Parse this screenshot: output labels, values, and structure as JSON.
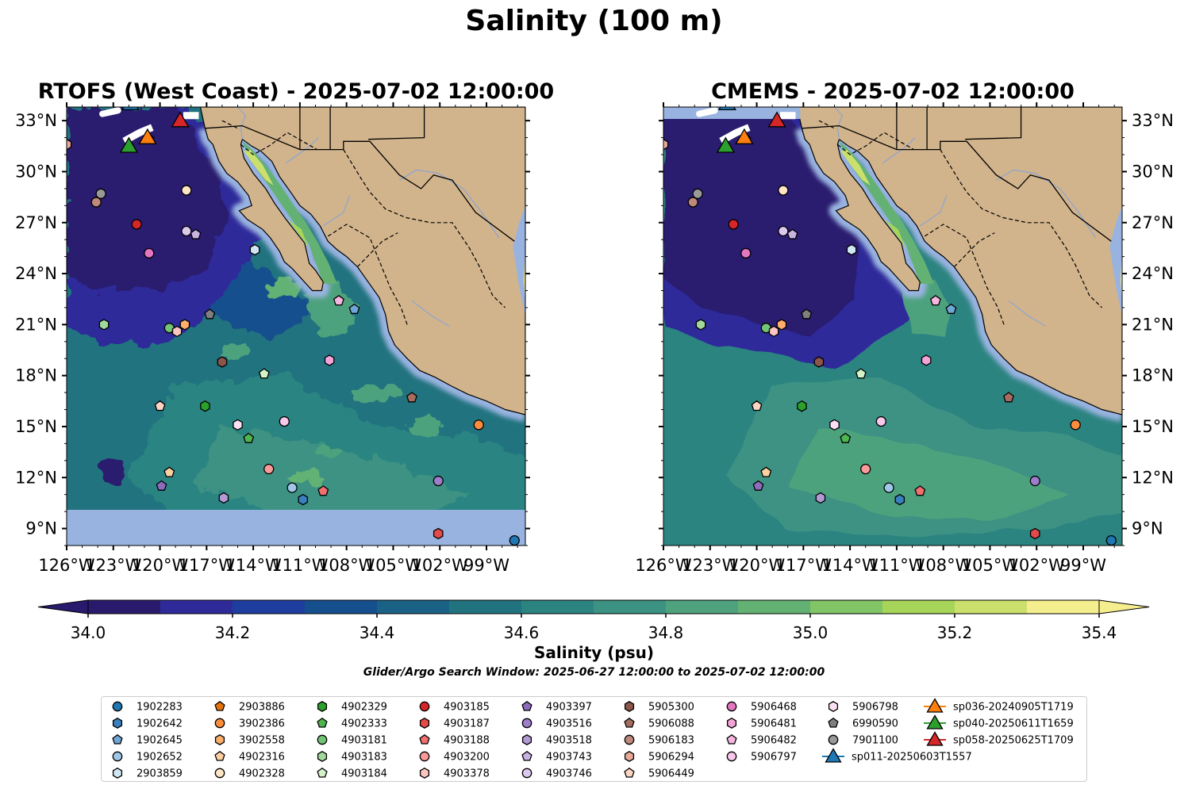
{
  "figure": {
    "title": "Salinity (100 m)",
    "colorbar_label": "Salinity (psu)",
    "search_window": "Glider/Argo Search Window: 2025-06-27 12:00:00 to 2025-07-02 12:00:00"
  },
  "colors": {
    "land": "#d2b48c",
    "ocean_nodata": "#99b3e0",
    "colormap": [
      "#2a1a6e",
      "#2e2a9a",
      "#1d3e9e",
      "#164f8e",
      "#1a6285",
      "#21737f",
      "#2c8481",
      "#3c9283",
      "#4ea27e",
      "#63b274",
      "#82c566",
      "#a7d55a",
      "#cbe06c",
      "#f5ee8e"
    ]
  },
  "chart_data": [
    {
      "type": "heatmap",
      "title": "RTOFS (West Coast) - 2025-07-02 12:00:00",
      "variable": "Salinity at 100 m",
      "units": "psu",
      "xlim": [
        -126,
        -96.5
      ],
      "ylim": [
        8,
        33.8
      ],
      "xticks": [
        "126°W",
        "123°W",
        "120°W",
        "117°W",
        "114°W",
        "111°W",
        "108°W",
        "105°W",
        "102°W",
        "99°W"
      ],
      "yticks": [
        "9°N",
        "12°N",
        "15°N",
        "18°N",
        "21°N",
        "24°N",
        "27°N",
        "30°N",
        "33°N"
      ],
      "ytick_side": "left",
      "nodata_band_below_lat": 10.1,
      "field_description": "Low salinity (~34.0) offshore north of 20°N; 34.4–34.8 across south; >35 in Gulf of California"
    },
    {
      "type": "heatmap",
      "title": "CMEMS - 2025-07-02 12:00:00",
      "variable": "Salinity at 100 m",
      "units": "psu",
      "xlim": [
        -126,
        -96.5
      ],
      "ylim": [
        8,
        33.8
      ],
      "xticks": [
        "126°W",
        "123°W",
        "120°W",
        "117°W",
        "114°W",
        "111°W",
        "108°W",
        "105°W",
        "102°W",
        "99°W"
      ],
      "yticks": [
        "9°N",
        "12°N",
        "15°N",
        "18°N",
        "21°N",
        "24°N",
        "27°N",
        "30°N",
        "33°N"
      ],
      "ytick_side": "right",
      "field_description": "Low salinity (~34.0) core offshore north of 19°N; 34.6–34.9 in south; >35 in Gulf of California"
    }
  ],
  "colorbar": {
    "min": 34.0,
    "max": 35.4,
    "step": 0.1,
    "ticks": [
      "34.0",
      "34.2",
      "34.4",
      "34.6",
      "34.8",
      "35.0",
      "35.2",
      "35.4"
    ],
    "extend": "both"
  },
  "platforms": [
    {
      "id": "1902283",
      "marker": "circle",
      "color": "#1f77b4",
      "lon": -97.2,
      "lat": 8.3
    },
    {
      "id": "1902642",
      "marker": "hexagon",
      "color": "#3a7fbf",
      "lon": -110.8,
      "lat": 10.7
    },
    {
      "id": "1902645",
      "marker": "pentagon",
      "color": "#6fa6d6",
      "lon": -107.5,
      "lat": 21.9
    },
    {
      "id": "1902652",
      "marker": "circle",
      "color": "#9ec7e8",
      "lon": -111.5,
      "lat": 11.4
    },
    {
      "id": "2903859",
      "marker": "hexagon",
      "color": "#cfe7f5",
      "lon": -113.9,
      "lat": 25.4
    },
    {
      "id": "2903886",
      "marker": "pentagon",
      "color": "#e6740e",
      "lon": -120.7,
      "lat": 31.9
    },
    {
      "id": "3902386",
      "marker": "circle",
      "color": "#fd8d3c",
      "lon": -99.5,
      "lat": 15.1
    },
    {
      "id": "3902558",
      "marker": "hexagon",
      "color": "#fdae6b",
      "lon": -118.4,
      "lat": 21.0
    },
    {
      "id": "4902316",
      "marker": "pentagon",
      "color": "#fdd0a2",
      "lon": -119.4,
      "lat": 12.3
    },
    {
      "id": "4902328",
      "marker": "circle",
      "color": "#fde5c6",
      "lon": -118.3,
      "lat": 28.9
    },
    {
      "id": "4902329",
      "marker": "hexagon",
      "color": "#2ca02c",
      "lon": -117.1,
      "lat": 16.2
    },
    {
      "id": "4902333",
      "marker": "pentagon",
      "color": "#4fb54f",
      "lon": -114.3,
      "lat": 14.3
    },
    {
      "id": "4903181",
      "marker": "circle",
      "color": "#74c476",
      "lon": -119.4,
      "lat": 20.8
    },
    {
      "id": "4903183",
      "marker": "hexagon",
      "color": "#a1d99b",
      "lon": -123.6,
      "lat": 21.0
    },
    {
      "id": "4903184",
      "marker": "pentagon",
      "color": "#d3f2c8",
      "lon": -113.3,
      "lat": 18.1
    },
    {
      "id": "4903185",
      "marker": "circle",
      "color": "#d62728",
      "lon": -121.5,
      "lat": 26.9
    },
    {
      "id": "4903187",
      "marker": "hexagon",
      "color": "#e34a4a",
      "lon": -102.1,
      "lat": 8.7
    },
    {
      "id": "4903188",
      "marker": "pentagon",
      "color": "#f27070",
      "lon": -109.5,
      "lat": 11.2
    },
    {
      "id": "4903200",
      "marker": "circle",
      "color": "#fc9a9a",
      "lon": -113.0,
      "lat": 12.5
    },
    {
      "id": "4903378",
      "marker": "hexagon",
      "color": "#fcc5c0",
      "lon": -118.9,
      "lat": 20.6
    },
    {
      "id": "4903397",
      "marker": "pentagon",
      "color": "#8e6bbd",
      "lon": -119.9,
      "lat": 11.5
    },
    {
      "id": "4903516",
      "marker": "circle",
      "color": "#9e7dc9",
      "lon": -102.1,
      "lat": 11.8
    },
    {
      "id": "4903518",
      "marker": "hexagon",
      "color": "#b399d6",
      "lon": -115.9,
      "lat": 10.8
    },
    {
      "id": "4903743",
      "marker": "pentagon",
      "color": "#c9b3e3",
      "lon": -117.7,
      "lat": 26.3
    },
    {
      "id": "4903746",
      "marker": "circle",
      "color": "#ddc9f0",
      "lon": -118.3,
      "lat": 26.5
    },
    {
      "id": "5905300",
      "marker": "hexagon",
      "color": "#8c564b",
      "lon": -116.0,
      "lat": 18.8
    },
    {
      "id": "5906088",
      "marker": "pentagon",
      "color": "#a66c5e",
      "lon": -103.8,
      "lat": 16.7
    },
    {
      "id": "5906183",
      "marker": "circle",
      "color": "#bf8a7c",
      "lon": -124.1,
      "lat": 28.2
    },
    {
      "id": "5906294",
      "marker": "hexagon",
      "color": "#e8a89a",
      "lon": -126.0,
      "lat": 31.6
    },
    {
      "id": "5906449",
      "marker": "pentagon",
      "color": "#fcd5c4",
      "lon": -120.0,
      "lat": 16.2
    },
    {
      "id": "5906468",
      "marker": "circle",
      "color": "#e377c2",
      "lon": -120.7,
      "lat": 25.2
    },
    {
      "id": "5906481",
      "marker": "hexagon",
      "color": "#f4a3d8",
      "lon": -109.1,
      "lat": 18.9
    },
    {
      "id": "5906482",
      "marker": "pentagon",
      "color": "#f7b6e0",
      "lon": -108.5,
      "lat": 22.4
    },
    {
      "id": "5906797",
      "marker": "circle",
      "color": "#f9c8ea",
      "lon": -112.0,
      "lat": 15.3
    },
    {
      "id": "5906798",
      "marker": "hexagon",
      "color": "#fde0f3",
      "lon": -115.0,
      "lat": 15.1
    },
    {
      "id": "6990590",
      "marker": "pentagon",
      "color": "#7f7f7f",
      "lon": -116.8,
      "lat": 21.6
    },
    {
      "id": "7901100",
      "marker": "circle",
      "color": "#999999",
      "lon": -123.8,
      "lat": 28.7
    }
  ],
  "gliders": [
    {
      "id": "sp011-20250603T1557",
      "marker": "triangle",
      "color": "#1f77b4",
      "lon": -121.9,
      "lat": 34.0
    },
    {
      "id": "sp036-20240905T1719",
      "marker": "triangle",
      "color": "#ff7f0e",
      "lon": -120.8,
      "lat": 32.0
    },
    {
      "id": "sp040-20250611T1659",
      "marker": "triangle",
      "color": "#2ca02c",
      "lon": -122.0,
      "lat": 31.5
    },
    {
      "id": "sp058-20250625T1709",
      "marker": "triangle",
      "color": "#d62728",
      "lon": -118.7,
      "lat": 33.0
    }
  ]
}
